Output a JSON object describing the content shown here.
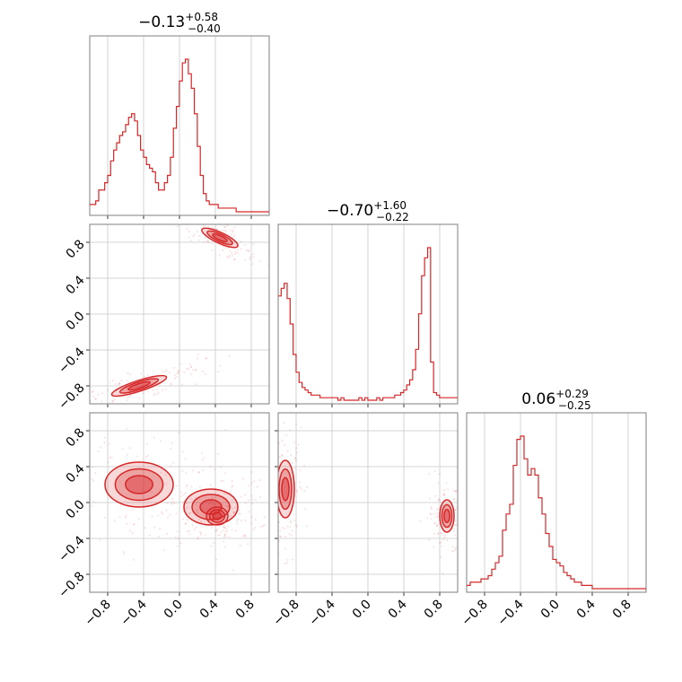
{
  "chart_data": {
    "type": "corner",
    "color": "#d62728",
    "grid": true,
    "parameters": [
      {
        "title": {
          "median": "0.13",
          "sign": "−",
          "upper": "+0.58",
          "lower": "−0.40"
        },
        "range": [
          -1,
          1
        ],
        "ticks": [
          "−0.8",
          "−0.4",
          "0.0",
          "0.4",
          "0.8"
        ],
        "tick_values": [
          -0.8,
          -0.4,
          0.0,
          0.4,
          0.8
        ],
        "histogram": {
          "bin_edges_start": -1.0,
          "bin_width": 0.0333,
          "values": [
            2,
            2,
            3,
            6,
            6,
            8,
            10,
            14,
            17,
            19,
            21,
            22,
            24,
            26,
            27,
            25,
            21,
            17,
            15,
            13,
            12,
            11,
            8,
            6,
            6,
            8,
            10,
            15,
            23,
            29,
            36,
            41,
            42,
            38,
            34,
            27,
            18,
            10,
            5,
            3,
            2,
            2,
            2,
            1,
            1,
            1,
            1,
            1,
            1,
            0,
            0,
            0,
            0,
            0,
            0,
            0,
            0,
            0,
            0,
            0
          ]
        }
      },
      {
        "title": {
          "median": "0.70",
          "sign": "−",
          "upper": "+1.60",
          "lower": "−0.22"
        },
        "range": [
          -1,
          1
        ],
        "ticks": [
          "−0.8",
          "−0.4",
          "0.0",
          "0.4",
          "0.8"
        ],
        "tick_values": [
          -0.8,
          -0.4,
          0.0,
          0.4,
          0.8
        ],
        "histogram": {
          "bin_edges_start": -1.0,
          "bin_width": 0.0333,
          "values": [
            41,
            44,
            46,
            40,
            30,
            18,
            11,
            7,
            5,
            4,
            3,
            2,
            2,
            2,
            1,
            1,
            1,
            1,
            1,
            1,
            0,
            1,
            0,
            0,
            0,
            0,
            0,
            1,
            0,
            1,
            0,
            0,
            0,
            1,
            0,
            1,
            1,
            1,
            1,
            2,
            2,
            3,
            4,
            6,
            8,
            12,
            20,
            34,
            49,
            56,
            60,
            15,
            3,
            2,
            1,
            1,
            1,
            1,
            1,
            1
          ]
        }
      },
      {
        "title": {
          "median": "0.06",
          "sign": "",
          "upper": "+0.29",
          "lower": "−0.25"
        },
        "range": [
          -1,
          1
        ],
        "ticks": [
          "−0.8",
          "−0.4",
          "0.0",
          "0.4",
          "0.8"
        ],
        "tick_values": [
          -0.8,
          -0.4,
          0.0,
          0.4,
          0.8
        ],
        "histogram": {
          "bin_edges_start": -1.0,
          "bin_width": 0.04,
          "values": [
            1,
            2,
            2,
            2,
            3,
            3,
            4,
            6,
            8,
            10,
            18,
            23,
            26,
            38,
            46,
            47,
            40,
            35,
            37,
            35,
            28,
            23,
            17,
            13,
            9,
            8,
            7,
            5,
            4,
            3,
            2,
            2,
            1,
            1,
            1,
            0,
            0,
            0,
            0,
            0,
            0,
            0,
            0,
            0,
            0,
            0,
            0,
            0,
            0,
            0
          ]
        }
      }
    ],
    "pairs": [
      {
        "x_param": 0,
        "y_param": 1,
        "modes": [
          {
            "cx": 0.45,
            "cy": 0.85,
            "rx": 0.22,
            "ry": 0.06,
            "rot": -25
          },
          {
            "cx": -0.45,
            "cy": -0.8,
            "rx": 0.32,
            "ry": 0.06,
            "rot": 18
          }
        ]
      },
      {
        "x_param": 0,
        "y_param": 2,
        "modes": [
          {
            "cx": -0.45,
            "cy": 0.2,
            "rx": 0.38,
            "ry": 0.25,
            "rot": 0
          },
          {
            "cx": 0.35,
            "cy": -0.05,
            "rx": 0.3,
            "ry": 0.2,
            "rot": 0
          },
          {
            "cx": 0.42,
            "cy": -0.15,
            "rx": 0.12,
            "ry": 0.1,
            "rot": 0
          }
        ]
      },
      {
        "x_param": 1,
        "y_param": 2,
        "modes": [
          {
            "cx": -0.92,
            "cy": 0.15,
            "rx": 0.1,
            "ry": 0.32,
            "rot": 0
          },
          {
            "cx": 0.88,
            "cy": -0.15,
            "rx": 0.08,
            "ry": 0.18,
            "rot": 0
          }
        ]
      }
    ]
  }
}
